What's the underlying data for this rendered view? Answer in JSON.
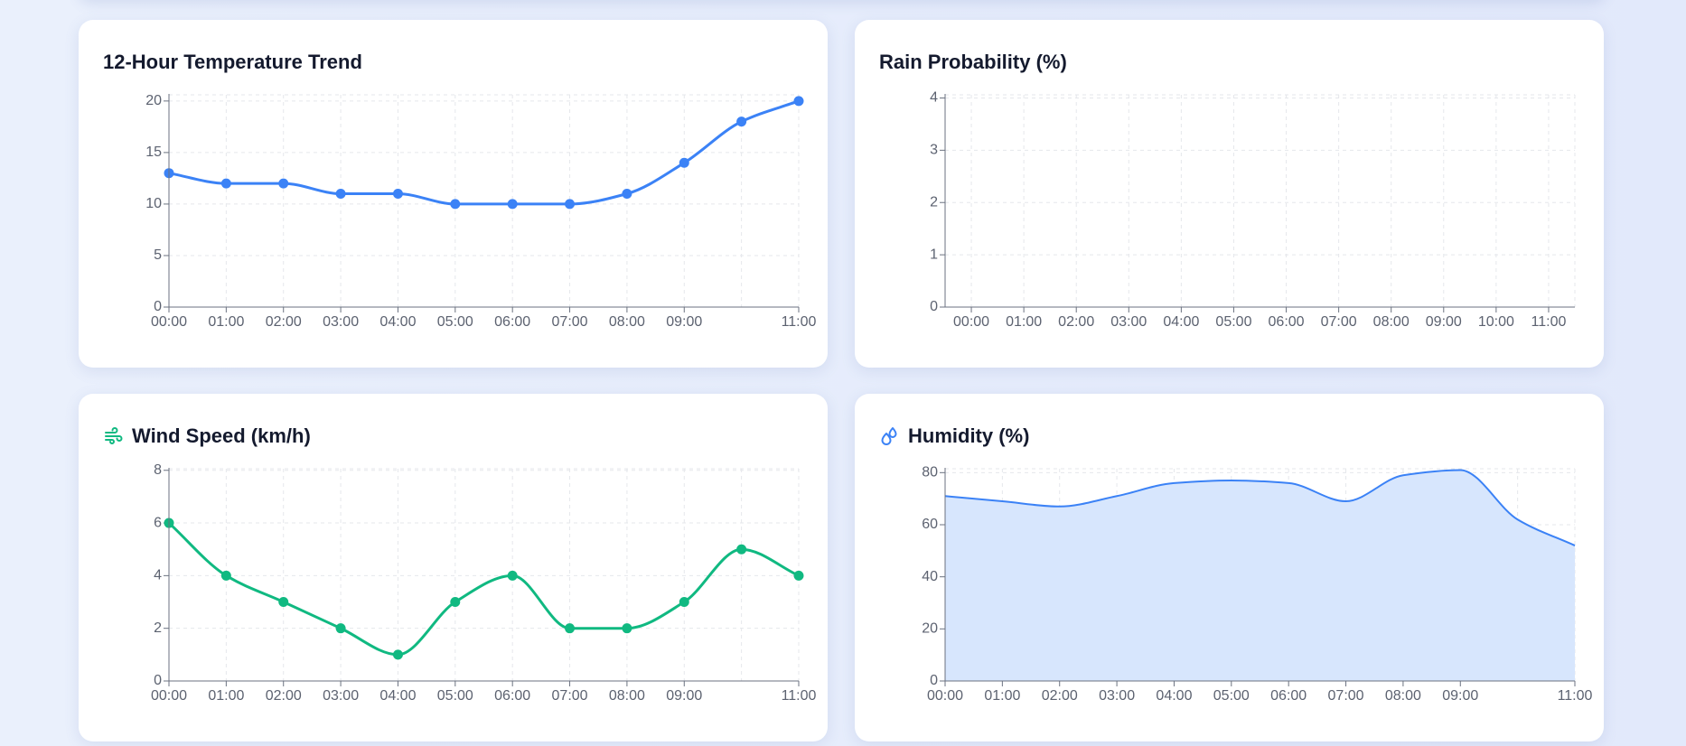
{
  "cards": {
    "temperature": {
      "title": "12-Hour Temperature Trend"
    },
    "rain": {
      "title": "Rain Probability (%)"
    },
    "wind": {
      "title": "Wind Speed (km/h)",
      "icon": "wind-icon"
    },
    "humidity": {
      "title": "Humidity (%)",
      "icon": "droplets-icon"
    }
  },
  "colors": {
    "temperature_line": "#3b82f6",
    "rain_axis": "#6b7280",
    "wind_line": "#10b981",
    "humidity_line": "#3b82f6",
    "humidity_fill": "#d7e6fd",
    "grid": "#e5e7eb"
  },
  "chart_data": [
    {
      "id": "temperature",
      "type": "line",
      "title": "12-Hour Temperature Trend",
      "x_ticks": [
        "00:00",
        "01:00",
        "02:00",
        "03:00",
        "04:00",
        "05:00",
        "06:00",
        "07:00",
        "08:00",
        "09:00",
        "11:00"
      ],
      "x": [
        "00:00",
        "01:00",
        "02:00",
        "03:00",
        "04:00",
        "05:00",
        "06:00",
        "07:00",
        "08:00",
        "09:00",
        "10:00",
        "11:00"
      ],
      "series": [
        {
          "values": [
            13,
            12,
            12,
            11,
            11,
            10,
            10,
            10,
            11,
            14,
            18,
            20
          ]
        }
      ],
      "y_ticks": [
        0,
        5,
        10,
        15,
        20
      ],
      "ylim": [
        0,
        20.6
      ],
      "grid": true,
      "markers": true
    },
    {
      "id": "rain",
      "type": "bar",
      "title": "Rain Probability (%)",
      "x_ticks": [
        "00:00",
        "01:00",
        "02:00",
        "03:00",
        "04:00",
        "05:00",
        "06:00",
        "07:00",
        "08:00",
        "09:00",
        "10:00",
        "11:00"
      ],
      "x": [
        "00:00",
        "01:00",
        "02:00",
        "03:00",
        "04:00",
        "05:00",
        "06:00",
        "07:00",
        "08:00",
        "09:00",
        "10:00",
        "11:00"
      ],
      "series": [
        {
          "values": [
            0,
            0,
            0,
            0,
            0,
            0,
            0,
            0,
            0,
            0,
            0,
            0
          ]
        }
      ],
      "y_ticks": [
        0,
        1,
        2,
        3,
        4
      ],
      "ylim": [
        0,
        4.06
      ],
      "grid": true
    },
    {
      "id": "wind",
      "type": "line",
      "title": "Wind Speed (km/h)",
      "x_ticks": [
        "00:00",
        "01:00",
        "02:00",
        "03:00",
        "04:00",
        "05:00",
        "06:00",
        "07:00",
        "08:00",
        "09:00",
        "11:00"
      ],
      "x": [
        "00:00",
        "01:00",
        "02:00",
        "03:00",
        "04:00",
        "05:00",
        "06:00",
        "07:00",
        "08:00",
        "09:00",
        "10:00",
        "11:00"
      ],
      "series": [
        {
          "values": [
            6,
            4,
            3,
            2,
            1,
            3,
            4,
            2,
            2,
            3,
            5,
            4
          ]
        }
      ],
      "y_ticks": [
        0,
        2,
        4,
        6,
        8
      ],
      "ylim": [
        0,
        8.06
      ],
      "grid": true,
      "markers": true
    },
    {
      "id": "humidity",
      "type": "area",
      "title": "Humidity (%)",
      "x_ticks": [
        "00:00",
        "01:00",
        "02:00",
        "03:00",
        "04:00",
        "05:00",
        "06:00",
        "07:00",
        "08:00",
        "09:00",
        "11:00"
      ],
      "x": [
        "00:00",
        "01:00",
        "02:00",
        "03:00",
        "04:00",
        "05:00",
        "06:00",
        "07:00",
        "08:00",
        "09:00",
        "10:00",
        "11:00"
      ],
      "series": [
        {
          "values": [
            71,
            69,
            67,
            71,
            76,
            77,
            76,
            69,
            79,
            81,
            62,
            52
          ]
        }
      ],
      "y_ticks": [
        0,
        20,
        40,
        60,
        80
      ],
      "ylim": [
        0,
        81.5
      ],
      "grid": true
    }
  ]
}
